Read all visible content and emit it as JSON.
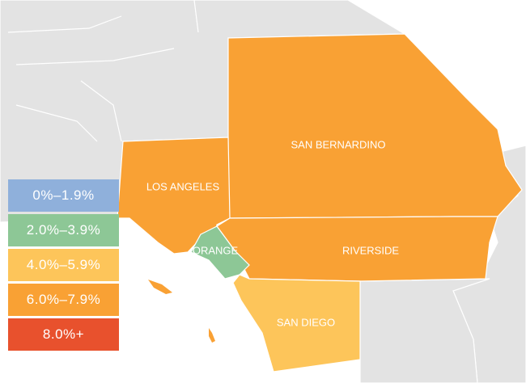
{
  "colors": {
    "background_land": "#e3e3e3",
    "boundary": "#ffffff",
    "band_0": "#8fb0db",
    "band_1": "#8dc796",
    "band_2": "#fdc55a",
    "band_3": "#f9a134",
    "band_4": "#e8512d"
  },
  "legend": [
    {
      "label": "0%–1.9%",
      "color": "#8fb0db"
    },
    {
      "label": "2.0%–3.9%",
      "color": "#8dc796"
    },
    {
      "label": "4.0%–5.9%",
      "color": "#fdc55a"
    },
    {
      "label": "6.0%–7.9%",
      "color": "#f9a134"
    },
    {
      "label": "8.0%+",
      "color": "#e8512d"
    }
  ],
  "counties": [
    {
      "name": "SAN BERNARDINO",
      "band": "6.0%–7.9%",
      "color": "#f9a134"
    },
    {
      "name": "LOS ANGELES",
      "band": "6.0%–7.9%",
      "color": "#f9a134"
    },
    {
      "name": "RIVERSIDE",
      "band": "6.0%–7.9%",
      "color": "#f9a134"
    },
    {
      "name": "ORANGE",
      "band": "2.0%–3.9%",
      "color": "#8dc796"
    },
    {
      "name": "SAN DIEGO",
      "band": "4.0%–5.9%",
      "color": "#fdc55a"
    }
  ]
}
